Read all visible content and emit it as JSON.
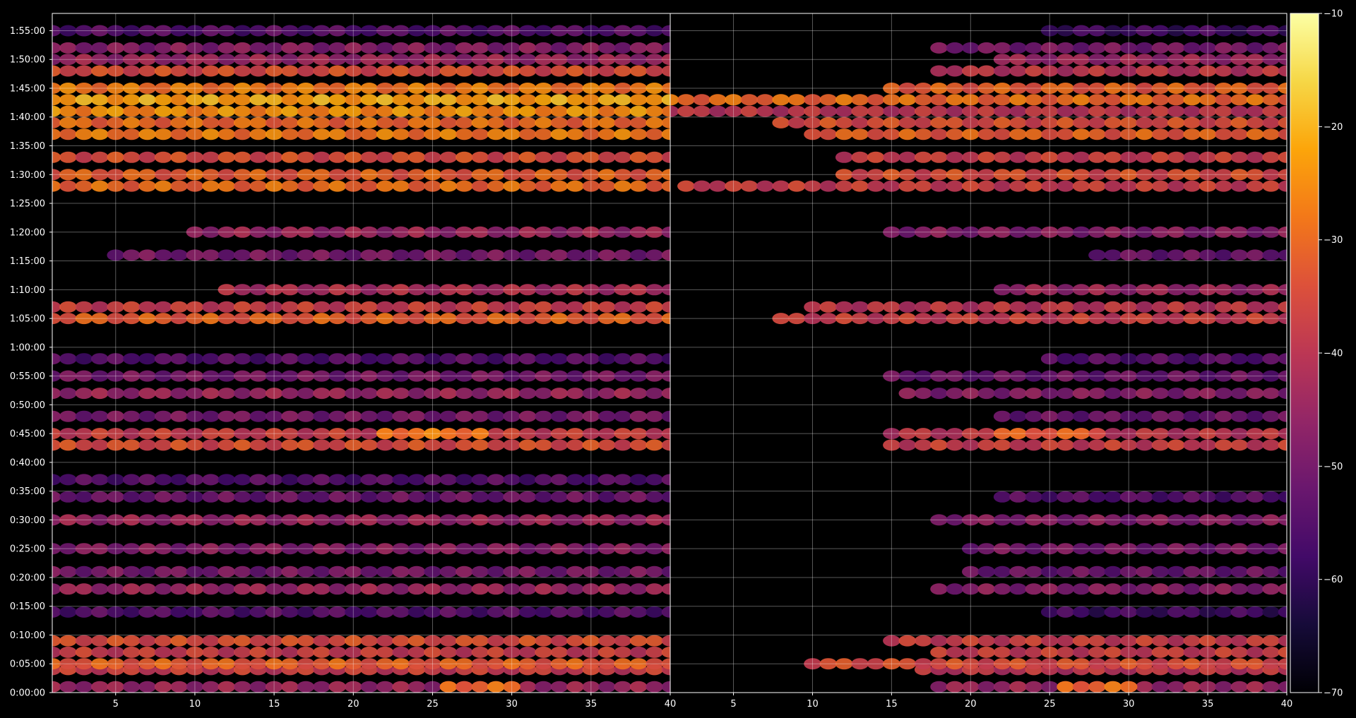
{
  "chart_data": {
    "type": "heatmap",
    "title": "",
    "xlabel": "",
    "ylabel": "",
    "x_range": [
      1,
      40
    ],
    "x_ticks": [
      "5",
      "10",
      "15",
      "20",
      "25",
      "30",
      "35",
      "40"
    ],
    "y_range_seconds": [
      0,
      7080
    ],
    "y_ticks": [
      "0:00:00",
      "0:05:00",
      "0:10:00",
      "0:15:00",
      "0:20:00",
      "0:25:00",
      "0:30:00",
      "0:35:00",
      "0:40:00",
      "0:45:00",
      "0:50:00",
      "0:55:00",
      "1:00:00",
      "1:05:00",
      "1:10:00",
      "1:15:00",
      "1:20:00",
      "1:25:00",
      "1:30:00",
      "1:35:00",
      "1:40:00",
      "1:45:00",
      "1:50:00",
      "1:55:00"
    ],
    "grid": true,
    "colormap": "inferno",
    "colorbar": {
      "range": [
        -70,
        -10
      ],
      "ticks": [
        "−10",
        "−20",
        "−30",
        "−40",
        "−50",
        "−60",
        "−70"
      ]
    },
    "panels": [
      {
        "name": "left",
        "rows": [
          {
            "time": "0:01:00",
            "x": [
              1,
              40
            ],
            "value": -45
          },
          {
            "time": "0:01:00",
            "x": [
              26,
              30
            ],
            "value": -30
          },
          {
            "time": "0:04:00",
            "x": [
              1,
              40
            ],
            "value": -38
          },
          {
            "time": "0:05:00",
            "x": [
              1,
              40
            ],
            "value": -32
          },
          {
            "time": "0:07:00",
            "x": [
              1,
              40
            ],
            "value": -38
          },
          {
            "time": "0:09:00",
            "x": [
              1,
              40
            ],
            "value": -35
          },
          {
            "time": "0:14:00",
            "x": [
              1,
              40
            ],
            "value": -55
          },
          {
            "time": "0:18:00",
            "x": [
              1,
              40
            ],
            "value": -45
          },
          {
            "time": "0:21:00",
            "x": [
              1,
              40
            ],
            "value": -50
          },
          {
            "time": "0:25:00",
            "x": [
              1,
              40
            ],
            "value": -48
          },
          {
            "time": "0:30:00",
            "x": [
              1,
              40
            ],
            "value": -45
          },
          {
            "time": "0:34:00",
            "x": [
              1,
              40
            ],
            "value": -52
          },
          {
            "time": "0:37:00",
            "x": [
              1,
              40
            ],
            "value": -55
          },
          {
            "time": "0:43:00",
            "x": [
              1,
              40
            ],
            "value": -35
          },
          {
            "time": "0:45:00",
            "x": [
              1,
              40
            ],
            "value": -38
          },
          {
            "time": "0:45:00",
            "x": [
              22,
              28
            ],
            "value": -28
          },
          {
            "time": "0:48:00",
            "x": [
              1,
              40
            ],
            "value": -50
          },
          {
            "time": "0:52:00",
            "x": [
              1,
              40
            ],
            "value": -45
          },
          {
            "time": "0:55:00",
            "x": [
              1,
              40
            ],
            "value": -50
          },
          {
            "time": "0:58:00",
            "x": [
              1,
              40
            ],
            "value": -55
          },
          {
            "time": "1:05:00",
            "x": [
              1,
              40
            ],
            "value": -32
          },
          {
            "time": "1:07:00",
            "x": [
              1,
              40
            ],
            "value": -38
          },
          {
            "time": "1:10:00",
            "x": [
              12,
              40
            ],
            "value": -42
          },
          {
            "time": "1:16:00",
            "x": [
              5,
              40
            ],
            "value": -50
          },
          {
            "time": "1:20:00",
            "x": [
              10,
              40
            ],
            "value": -45
          },
          {
            "time": "1:28:00",
            "x": [
              1,
              40
            ],
            "value": -30
          },
          {
            "time": "1:30:00",
            "x": [
              1,
              40
            ],
            "value": -32
          },
          {
            "time": "1:33:00",
            "x": [
              1,
              40
            ],
            "value": -35
          },
          {
            "time": "1:37:00",
            "x": [
              1,
              40
            ],
            "value": -28
          },
          {
            "time": "1:39:00",
            "x": [
              1,
              40
            ],
            "value": -30
          },
          {
            "time": "1:41:00",
            "x": [
              1,
              40
            ],
            "value": -25
          },
          {
            "time": "1:43:00",
            "x": [
              1,
              40
            ],
            "value": -22
          },
          {
            "time": "1:45:00",
            "x": [
              1,
              40
            ],
            "value": -28
          },
          {
            "time": "1:48:00",
            "x": [
              1,
              40
            ],
            "value": -35
          },
          {
            "time": "1:50:00",
            "x": [
              1,
              40
            ],
            "value": -45
          },
          {
            "time": "1:52:00",
            "x": [
              1,
              40
            ],
            "value": -48
          },
          {
            "time": "1:55:00",
            "x": [
              1,
              40
            ],
            "value": -55
          }
        ]
      },
      {
        "name": "right",
        "rows": [
          {
            "time": "0:01:00",
            "x": [
              18,
              40
            ],
            "value": -45
          },
          {
            "time": "0:01:00",
            "x": [
              26,
              30
            ],
            "value": -30
          },
          {
            "time": "0:04:00",
            "x": [
              17,
              40
            ],
            "value": -40
          },
          {
            "time": "0:05:00",
            "x": [
              10,
              40
            ],
            "value": -35
          },
          {
            "time": "0:07:00",
            "x": [
              18,
              40
            ],
            "value": -38
          },
          {
            "time": "0:09:00",
            "x": [
              15,
              40
            ],
            "value": -38
          },
          {
            "time": "0:14:00",
            "x": [
              25,
              40
            ],
            "value": -58
          },
          {
            "time": "0:18:00",
            "x": [
              18,
              40
            ],
            "value": -48
          },
          {
            "time": "0:21:00",
            "x": [
              20,
              40
            ],
            "value": -52
          },
          {
            "time": "0:25:00",
            "x": [
              20,
              40
            ],
            "value": -50
          },
          {
            "time": "0:30:00",
            "x": [
              18,
              40
            ],
            "value": -48
          },
          {
            "time": "0:34:00",
            "x": [
              22,
              40
            ],
            "value": -55
          },
          {
            "time": "0:43:00",
            "x": [
              15,
              40
            ],
            "value": -38
          },
          {
            "time": "0:45:00",
            "x": [
              15,
              40
            ],
            "value": -40
          },
          {
            "time": "0:45:00",
            "x": [
              22,
              28
            ],
            "value": -32
          },
          {
            "time": "0:48:00",
            "x": [
              22,
              40
            ],
            "value": -52
          },
          {
            "time": "0:52:00",
            "x": [
              16,
              40
            ],
            "value": -48
          },
          {
            "time": "0:55:00",
            "x": [
              15,
              40
            ],
            "value": -52
          },
          {
            "time": "0:58:00",
            "x": [
              25,
              40
            ],
            "value": -55
          },
          {
            "time": "1:05:00",
            "x": [
              8,
              40
            ],
            "value": -38
          },
          {
            "time": "1:07:00",
            "x": [
              10,
              40
            ],
            "value": -40
          },
          {
            "time": "1:10:00",
            "x": [
              22,
              40
            ],
            "value": -45
          },
          {
            "time": "1:16:00",
            "x": [
              28,
              40
            ],
            "value": -52
          },
          {
            "time": "1:20:00",
            "x": [
              15,
              40
            ],
            "value": -48
          },
          {
            "time": "1:28:00",
            "x": [
              2,
              40
            ],
            "value": -38
          },
          {
            "time": "1:30:00",
            "x": [
              12,
              40
            ],
            "value": -35
          },
          {
            "time": "1:33:00",
            "x": [
              12,
              40
            ],
            "value": -38
          },
          {
            "time": "1:37:00",
            "x": [
              10,
              40
            ],
            "value": -32
          },
          {
            "time": "1:39:00",
            "x": [
              8,
              40
            ],
            "value": -35
          },
          {
            "time": "1:41:00",
            "x": [
              1,
              40
            ],
            "value": -40
          },
          {
            "time": "1:43:00",
            "x": [
              1,
              40
            ],
            "value": -30
          },
          {
            "time": "1:45:00",
            "x": [
              15,
              40
            ],
            "value": -32
          },
          {
            "time": "1:48:00",
            "x": [
              18,
              40
            ],
            "value": -40
          },
          {
            "time": "1:50:00",
            "x": [
              22,
              40
            ],
            "value": -45
          },
          {
            "time": "1:52:00",
            "x": [
              18,
              40
            ],
            "value": -50
          },
          {
            "time": "1:55:00",
            "x": [
              25,
              40
            ],
            "value": -58
          }
        ]
      }
    ]
  }
}
